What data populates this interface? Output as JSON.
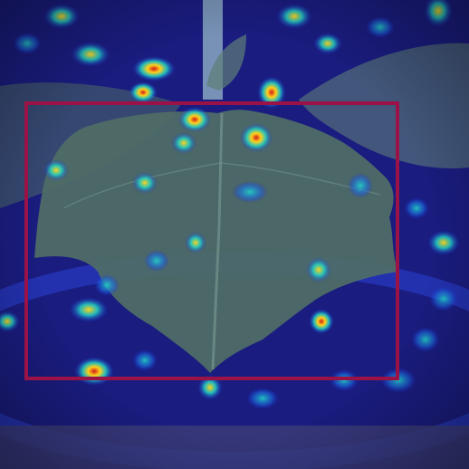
{
  "image": {
    "subject": "plant-seedling-leaf",
    "overlay": "attention-heatmap",
    "colors": {
      "background_soil": "#1a1238",
      "heat_low": "#1b2bd6",
      "heat_mid": "#22d3c5",
      "heat_high": "#ffd21a",
      "heat_peak": "#d11a1a",
      "leaf": "#4f6e66",
      "stem": "#8fb0c4",
      "bbox": "#9b1246"
    }
  }
}
